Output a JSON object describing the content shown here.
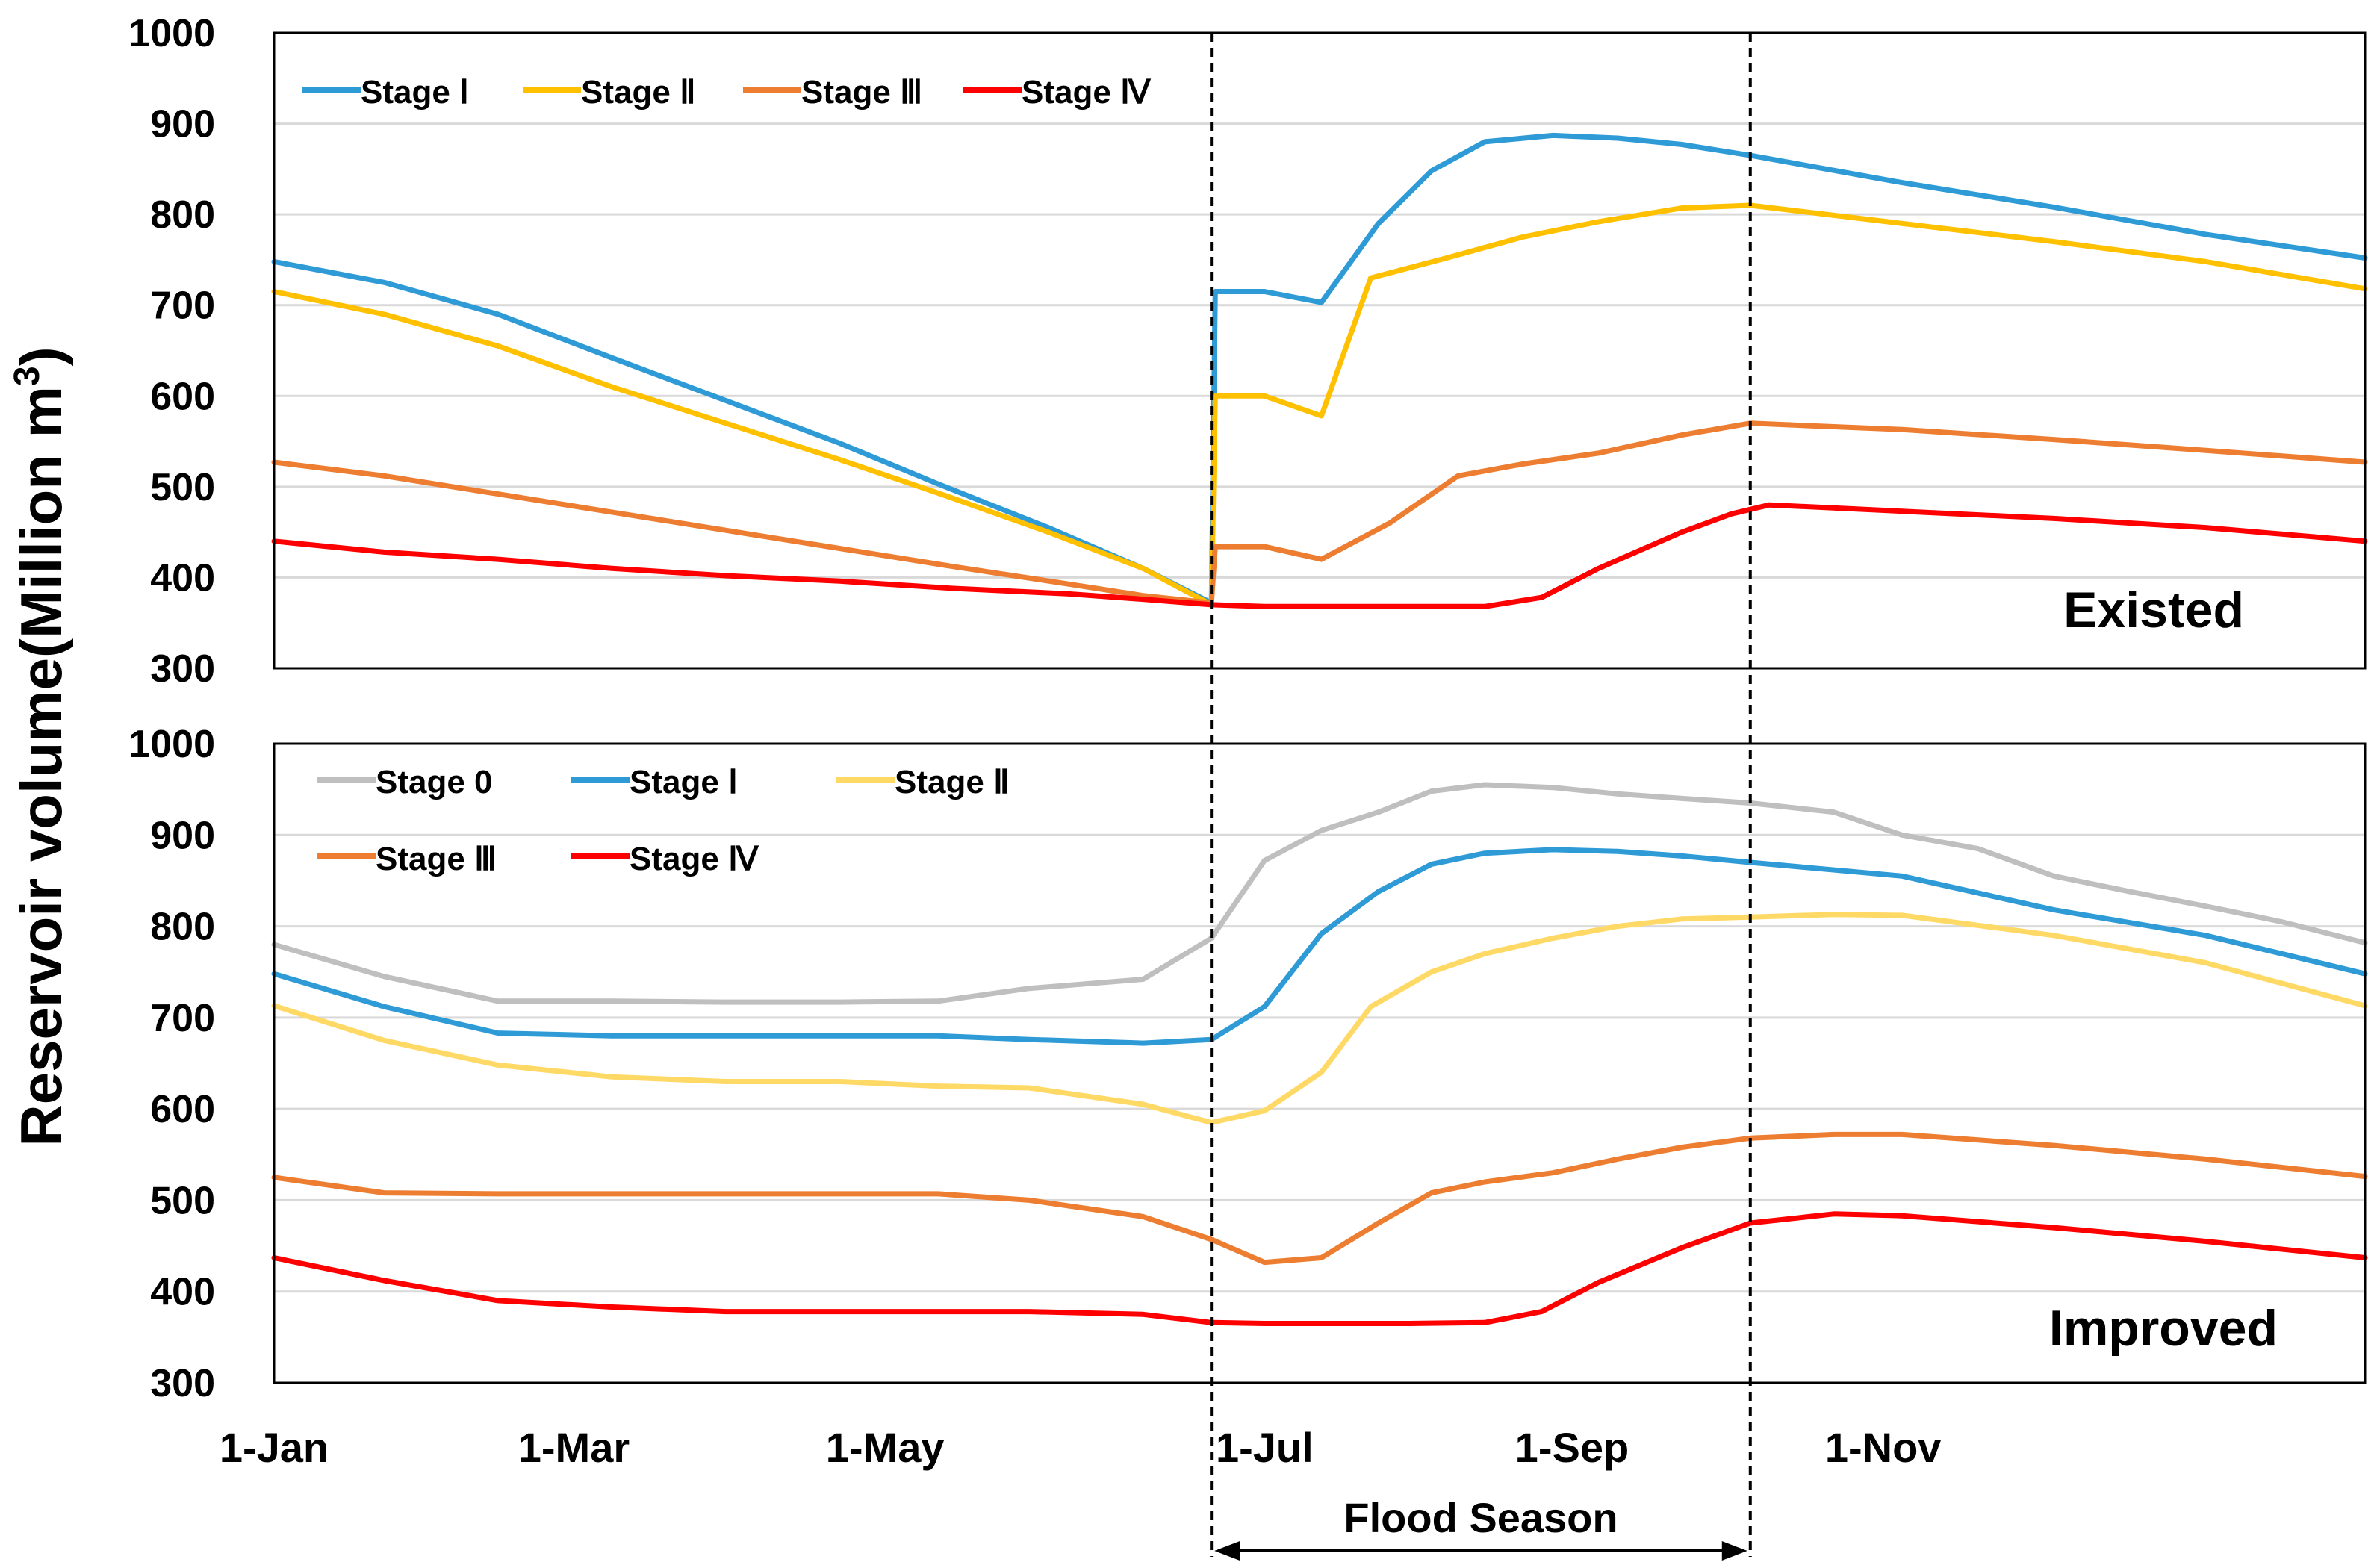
{
  "chart_data": [
    {
      "type": "line",
      "panel_label": "Existed",
      "x_unit": "day of year",
      "ylim": [
        300,
        1000
      ],
      "yticks": [
        300,
        400,
        500,
        600,
        700,
        800,
        900,
        1000
      ],
      "grid": true,
      "legend_position": "top-left",
      "series": [
        {
          "name": "Stage Ⅰ",
          "color": "#2E9BD6",
          "points": [
            [
              1,
              748
            ],
            [
              30,
              725
            ],
            [
              60,
              690
            ],
            [
              90,
              642
            ],
            [
              120,
              595
            ],
            [
              150,
              548
            ],
            [
              176,
              503
            ],
            [
              205,
              455
            ],
            [
              230,
              410
            ],
            [
              248,
              372
            ],
            [
              249,
              715
            ],
            [
              262,
              715
            ],
            [
              277,
              703
            ],
            [
              292,
              790
            ],
            [
              306,
              848
            ],
            [
              320,
              880
            ],
            [
              338,
              887
            ],
            [
              355,
              884
            ],
            [
              372,
              877
            ],
            [
              390,
              865
            ],
            [
              430,
              835
            ],
            [
              470,
              808
            ],
            [
              510,
              778
            ],
            [
              552,
              752
            ]
          ]
        },
        {
          "name": "Stage Ⅱ",
          "color": "#FFC000",
          "points": [
            [
              1,
              715
            ],
            [
              30,
              690
            ],
            [
              60,
              655
            ],
            [
              90,
              610
            ],
            [
              120,
              570
            ],
            [
              150,
              530
            ],
            [
              176,
              493
            ],
            [
              205,
              450
            ],
            [
              230,
              410
            ],
            [
              248,
              370
            ],
            [
              249,
              600
            ],
            [
              262,
              600
            ],
            [
              277,
              578
            ],
            [
              290,
              730
            ],
            [
              310,
              752
            ],
            [
              330,
              775
            ],
            [
              350,
              792
            ],
            [
              372,
              807
            ],
            [
              390,
              810
            ],
            [
              430,
              790
            ],
            [
              470,
              770
            ],
            [
              510,
              748
            ],
            [
              552,
              718
            ]
          ]
        },
        {
          "name": "Stage Ⅲ",
          "color": "#ED7D31",
          "points": [
            [
              1,
              527
            ],
            [
              30,
              512
            ],
            [
              60,
              492
            ],
            [
              90,
              472
            ],
            [
              120,
              452
            ],
            [
              150,
              432
            ],
            [
              180,
              412
            ],
            [
              210,
              393
            ],
            [
              230,
              380
            ],
            [
              248,
              372
            ],
            [
              249,
              434
            ],
            [
              262,
              434
            ],
            [
              277,
              420
            ],
            [
              295,
              460
            ],
            [
              313,
              512
            ],
            [
              330,
              525
            ],
            [
              350,
              537
            ],
            [
              372,
              557
            ],
            [
              390,
              570
            ],
            [
              430,
              563
            ],
            [
              470,
              552
            ],
            [
              510,
              540
            ],
            [
              552,
              527
            ]
          ]
        },
        {
          "name": "Stage Ⅳ",
          "color": "#FF0000",
          "points": [
            [
              1,
              440
            ],
            [
              30,
              428
            ],
            [
              60,
              420
            ],
            [
              90,
              410
            ],
            [
              120,
              402
            ],
            [
              150,
              396
            ],
            [
              180,
              388
            ],
            [
              210,
              382
            ],
            [
              230,
              376
            ],
            [
              248,
              370
            ],
            [
              262,
              368
            ],
            [
              300,
              368
            ],
            [
              320,
              368
            ],
            [
              335,
              378
            ],
            [
              350,
              410
            ],
            [
              372,
              450
            ],
            [
              385,
              470
            ],
            [
              395,
              480
            ],
            [
              430,
              473
            ],
            [
              470,
              465
            ],
            [
              510,
              455
            ],
            [
              552,
              440
            ]
          ]
        }
      ]
    },
    {
      "type": "line",
      "panel_label": "Improved",
      "x_unit": "day of year",
      "ylim": [
        300,
        1000
      ],
      "yticks": [
        300,
        400,
        500,
        600,
        700,
        800,
        900,
        1000
      ],
      "grid": true,
      "legend_position": "top-left",
      "series": [
        {
          "name": "Stage 0",
          "color": "#BFBFBF",
          "points": [
            [
              1,
              780
            ],
            [
              30,
              745
            ],
            [
              60,
              718
            ],
            [
              90,
              718
            ],
            [
              120,
              717
            ],
            [
              150,
              717
            ],
            [
              176,
              718
            ],
            [
              200,
              732
            ],
            [
              230,
              742
            ],
            [
              248,
              787
            ],
            [
              262,
              872
            ],
            [
              277,
              905
            ],
            [
              292,
              925
            ],
            [
              306,
              948
            ],
            [
              320,
              955
            ],
            [
              338,
              952
            ],
            [
              355,
              945
            ],
            [
              372,
              940
            ],
            [
              390,
              935
            ],
            [
              412,
              925
            ],
            [
              430,
              900
            ],
            [
              450,
              885
            ],
            [
              470,
              855
            ],
            [
              490,
              838
            ],
            [
              510,
              822
            ],
            [
              530,
              805
            ],
            [
              552,
              782
            ]
          ]
        },
        {
          "name": "Stage Ⅰ",
          "color": "#2E9BD6",
          "points": [
            [
              1,
              748
            ],
            [
              30,
              712
            ],
            [
              60,
              683
            ],
            [
              90,
              680
            ],
            [
              120,
              680
            ],
            [
              150,
              680
            ],
            [
              176,
              680
            ],
            [
              200,
              676
            ],
            [
              230,
              672
            ],
            [
              248,
              676
            ],
            [
              262,
              712
            ],
            [
              277,
              792
            ],
            [
              292,
              838
            ],
            [
              306,
              868
            ],
            [
              320,
              880
            ],
            [
              338,
              884
            ],
            [
              355,
              882
            ],
            [
              372,
              877
            ],
            [
              390,
              870
            ],
            [
              430,
              855
            ],
            [
              470,
              818
            ],
            [
              510,
              790
            ],
            [
              552,
              748
            ]
          ]
        },
        {
          "name": "Stage Ⅱ",
          "color": "#FFD966",
          "points": [
            [
              1,
              713
            ],
            [
              30,
              675
            ],
            [
              60,
              648
            ],
            [
              90,
              635
            ],
            [
              120,
              630
            ],
            [
              150,
              630
            ],
            [
              176,
              625
            ],
            [
              200,
              623
            ],
            [
              230,
              605
            ],
            [
              248,
              585
            ],
            [
              262,
              598
            ],
            [
              277,
              640
            ],
            [
              290,
              712
            ],
            [
              306,
              750
            ],
            [
              320,
              770
            ],
            [
              338,
              787
            ],
            [
              355,
              800
            ],
            [
              372,
              808
            ],
            [
              390,
              810
            ],
            [
              412,
              813
            ],
            [
              430,
              812
            ],
            [
              470,
              790
            ],
            [
              510,
              760
            ],
            [
              552,
              713
            ]
          ]
        },
        {
          "name": "Stage Ⅲ",
          "color": "#ED7D31",
          "points": [
            [
              1,
              525
            ],
            [
              30,
              508
            ],
            [
              60,
              507
            ],
            [
              90,
              507
            ],
            [
              120,
              507
            ],
            [
              150,
              507
            ],
            [
              176,
              507
            ],
            [
              200,
              500
            ],
            [
              230,
              482
            ],
            [
              248,
              457
            ],
            [
              262,
              432
            ],
            [
              277,
              437
            ],
            [
              292,
              475
            ],
            [
              306,
              508
            ],
            [
              320,
              520
            ],
            [
              338,
              530
            ],
            [
              355,
              545
            ],
            [
              372,
              558
            ],
            [
              390,
              568
            ],
            [
              412,
              572
            ],
            [
              430,
              572
            ],
            [
              470,
              560
            ],
            [
              510,
              545
            ],
            [
              552,
              526
            ]
          ]
        },
        {
          "name": "Stage Ⅳ",
          "color": "#FF0000",
          "points": [
            [
              1,
              437
            ],
            [
              30,
              412
            ],
            [
              60,
              390
            ],
            [
              90,
              383
            ],
            [
              120,
              378
            ],
            [
              150,
              378
            ],
            [
              176,
              378
            ],
            [
              200,
              378
            ],
            [
              230,
              375
            ],
            [
              248,
              366
            ],
            [
              262,
              365
            ],
            [
              300,
              365
            ],
            [
              320,
              366
            ],
            [
              335,
              378
            ],
            [
              350,
              410
            ],
            [
              372,
              448
            ],
            [
              390,
              475
            ],
            [
              412,
              485
            ],
            [
              430,
              483
            ],
            [
              470,
              470
            ],
            [
              510,
              455
            ],
            [
              552,
              437
            ]
          ]
        }
      ]
    }
  ],
  "shared": {
    "ylabel": "Reservoir volume(Million m",
    "ylabel_superscript": "3",
    "ylabel_close": ")",
    "x_ticks": [
      {
        "label": "1-Jan",
        "day": 1
      },
      {
        "label": "1-Mar",
        "day": 80
      },
      {
        "label": "1-May",
        "day": 162
      },
      {
        "label": "1-Jul",
        "day": 262
      },
      {
        "label": "1-Sep",
        "day": 343
      },
      {
        "label": "1-Nov",
        "day": 425
      }
    ],
    "x_range": [
      1,
      552
    ],
    "flood_season": {
      "label": "Flood Season",
      "start_day": 248,
      "end_day": 390
    }
  }
}
